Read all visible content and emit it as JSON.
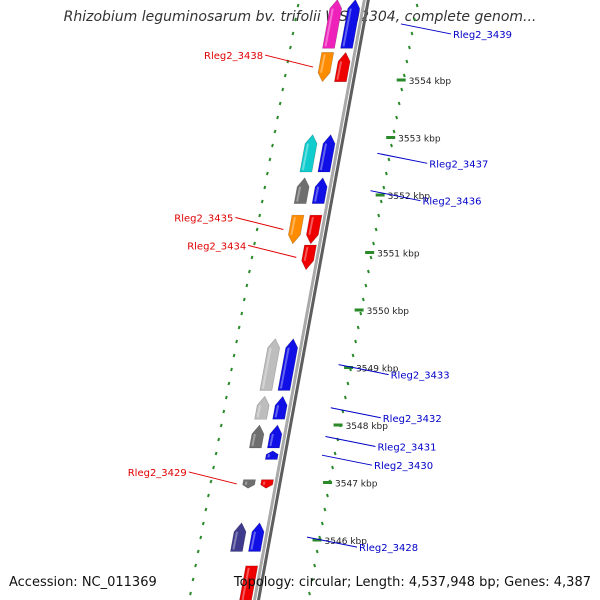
{
  "title": "Rhizobium leguminosarum bv. trifolii WSM2304, complete genom...",
  "accession": "Accession: NC_011369",
  "summary": "Topology: circular; Length: 4,537,948 bp; Genes: 4,387",
  "kbp_labels": [
    {
      "text": "3554 kbp",
      "pos": 3554.0
    },
    {
      "text": "3553 kbp",
      "pos": 3553.0
    },
    {
      "text": "3552 kbp",
      "pos": 3552.0
    },
    {
      "text": "3551 kbp",
      "pos": 3551.0
    },
    {
      "text": "3550 kbp",
      "pos": 3550.0
    },
    {
      "text": "3549 kbp",
      "pos": 3549.0
    },
    {
      "text": "3548 kbp",
      "pos": 3548.0
    },
    {
      "text": "3547 kbp",
      "pos": 3547.0
    },
    {
      "text": "3546 kbp",
      "pos": 3546.0
    }
  ],
  "colors": {
    "left_label": "#e00000",
    "right_label": "#0000c8",
    "backbone": "#888888",
    "tick": "#2a8a2a",
    "orange": "#ff8c00",
    "red": "#ee0000",
    "blue": "#1010e6",
    "cyan": "#11cccc",
    "gray": "#6e6e6e",
    "lightgray": "#bdbdbd",
    "purple": "#3e3a8c",
    "magenta": "#ee22bb"
  },
  "genes": [
    {
      "name": "Rleg2_3439",
      "strand": "+",
      "start": 3554.55,
      "end": 3555.4,
      "color": "blue",
      "lane": 1,
      "labeled": false
    },
    {
      "name": "Rleg2_3439",
      "strand": "+",
      "start": 3554.55,
      "end": 3555.4,
      "color": "magenta",
      "lane": 2,
      "labeled": true
    },
    {
      "name": "Rleg2_3438",
      "strand": "-",
      "start": 3553.97,
      "end": 3554.48,
      "color": "orange",
      "lane": 2,
      "labeled": true
    },
    {
      "name": "",
      "strand": "+",
      "start": 3553.97,
      "end": 3554.48,
      "color": "red",
      "lane": 1,
      "labeled": false
    },
    {
      "name": "",
      "strand": "+",
      "start": 3552.4,
      "end": 3553.05,
      "color": "blue",
      "lane": 1,
      "labeled": false
    },
    {
      "name": "Rleg2_3437",
      "strand": "+",
      "start": 3552.4,
      "end": 3553.05,
      "color": "cyan",
      "lane": 2,
      "labeled": true
    },
    {
      "name": "",
      "strand": "+",
      "start": 3551.85,
      "end": 3552.3,
      "color": "blue",
      "lane": 1,
      "labeled": false
    },
    {
      "name": "Rleg2_3436",
      "strand": "+",
      "start": 3551.85,
      "end": 3552.3,
      "color": "gray",
      "lane": 2,
      "labeled": true
    },
    {
      "name": "Rleg2_3435",
      "strand": "-",
      "start": 3551.15,
      "end": 3551.65,
      "color": "orange",
      "lane": 2,
      "labeled": true
    },
    {
      "name": "",
      "strand": "-",
      "start": 3551.15,
      "end": 3551.65,
      "color": "red",
      "lane": 1,
      "labeled": false
    },
    {
      "name": "Rleg2_3434",
      "strand": "-",
      "start": 3550.7,
      "end": 3551.13,
      "color": "red",
      "lane": 1,
      "labeled": true
    },
    {
      "name": "",
      "strand": "+",
      "start": 3548.6,
      "end": 3549.5,
      "color": "blue",
      "lane": 1,
      "labeled": false
    },
    {
      "name": "Rleg2_3433",
      "strand": "+",
      "start": 3548.6,
      "end": 3549.5,
      "color": "lightgray",
      "lane": 2,
      "labeled": true
    },
    {
      "name": "",
      "strand": "+",
      "start": 3548.1,
      "end": 3548.5,
      "color": "blue",
      "lane": 1,
      "labeled": false
    },
    {
      "name": "Rleg2_3432",
      "strand": "+",
      "start": 3548.1,
      "end": 3548.5,
      "color": "lightgray",
      "lane": 2,
      "labeled": true
    },
    {
      "name": "",
      "strand": "+",
      "start": 3547.6,
      "end": 3548.0,
      "color": "blue",
      "lane": 1,
      "labeled": false
    },
    {
      "name": "Rleg2_3431",
      "strand": "+",
      "start": 3547.6,
      "end": 3548.0,
      "color": "gray",
      "lane": 2,
      "labeled": true
    },
    {
      "name": "Rleg2_3430",
      "strand": "+",
      "start": 3547.4,
      "end": 3547.55,
      "color": "blue",
      "lane": 1,
      "labeled": true
    },
    {
      "name": "Rleg2_3429",
      "strand": "-",
      "start": 3546.9,
      "end": 3547.05,
      "color": "gray",
      "lane": 2,
      "labeled": true
    },
    {
      "name": "",
      "strand": "-",
      "start": 3546.9,
      "end": 3547.05,
      "color": "red",
      "lane": 1,
      "labeled": false
    },
    {
      "name": "",
      "strand": "+",
      "start": 3545.8,
      "end": 3546.3,
      "color": "blue",
      "lane": 1,
      "labeled": false
    },
    {
      "name": "Rleg2_3428",
      "strand": "+",
      "start": 3545.8,
      "end": 3546.3,
      "color": "purple",
      "lane": 2,
      "labeled": true
    },
    {
      "name": "",
      "strand": "-",
      "start": 3544.8,
      "end": 3545.55,
      "color": "red",
      "lane": 1,
      "labeled": false
    }
  ]
}
